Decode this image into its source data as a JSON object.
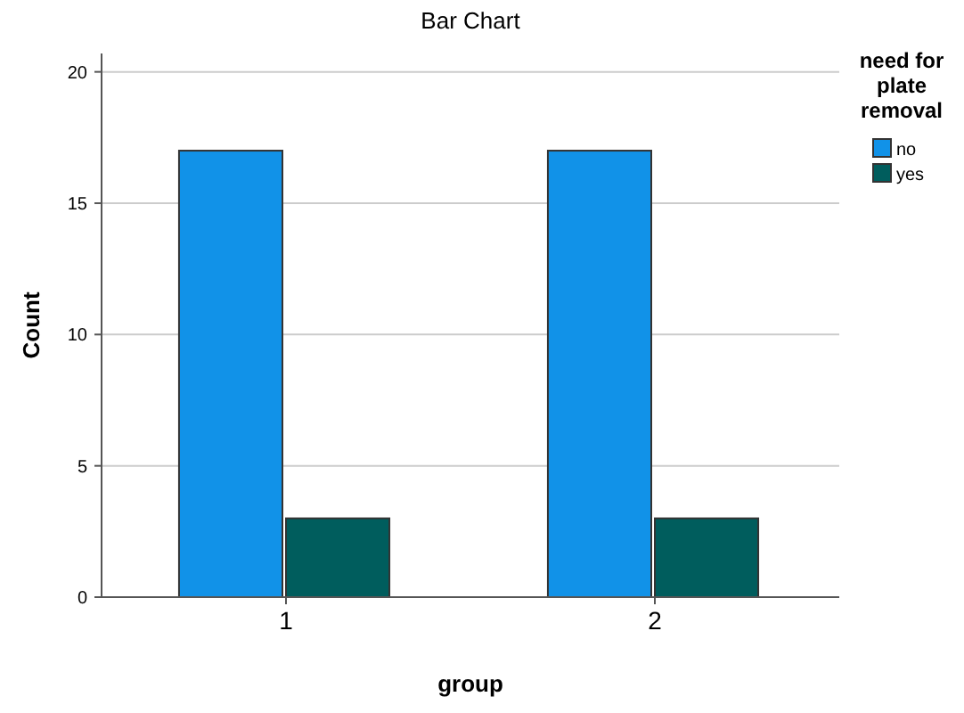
{
  "chart_data": {
    "type": "bar",
    "title": "Bar Chart",
    "xlabel": "group",
    "ylabel": "Count",
    "legend_title": "need for plate removal",
    "categories": [
      "1",
      "2"
    ],
    "series": [
      {
        "name": "no",
        "color": "#1192e8",
        "values": [
          17,
          17
        ]
      },
      {
        "name": "yes",
        "color": "#005d5d",
        "values": [
          3,
          3
        ]
      }
    ],
    "ylim": [
      0,
      20.7
    ],
    "yticks": [
      0,
      5,
      10,
      15,
      20
    ],
    "grid": "y",
    "legend": "right"
  }
}
